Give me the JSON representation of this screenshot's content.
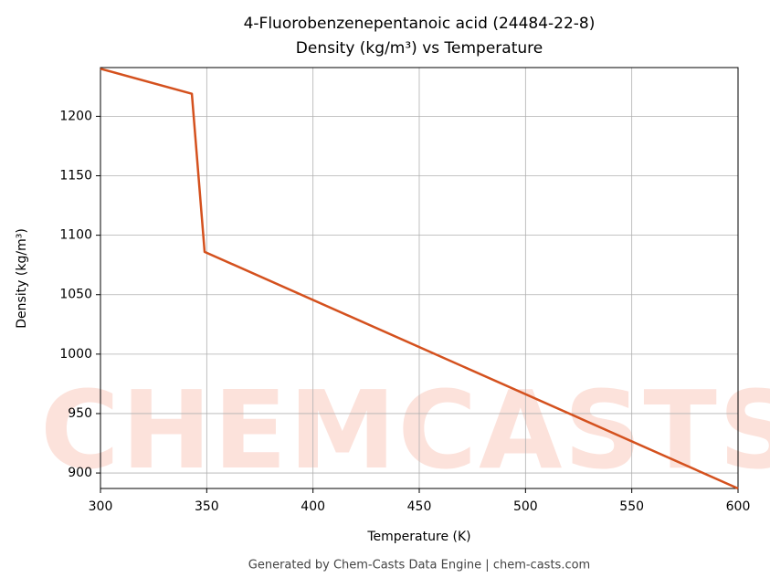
{
  "chart_data": {
    "type": "line",
    "title": "4-Fluorobenzenepentanoic acid (24484-22-8)",
    "subtitle": "Density (kg/m³) vs Temperature",
    "x_label": "Temperature (K)",
    "y_label": "Density (kg/m³)",
    "footer": "Generated by Chem-Casts Data Engine | chem-casts.com",
    "watermark": "CHEMCASTS",
    "x": [
      300,
      343,
      349,
      600
    ],
    "series": [
      {
        "name": "Density",
        "color": "#d4511e",
        "values": [
          1240,
          1219,
          1086,
          887
        ]
      }
    ],
    "xlim": [
      300,
      600
    ],
    "xticks": [
      300,
      350,
      400,
      450,
      500,
      550,
      600
    ],
    "ylim": [
      887,
      1241
    ],
    "yticks": [
      900,
      950,
      1000,
      1050,
      1100,
      1150,
      1200
    ],
    "grid": true
  }
}
